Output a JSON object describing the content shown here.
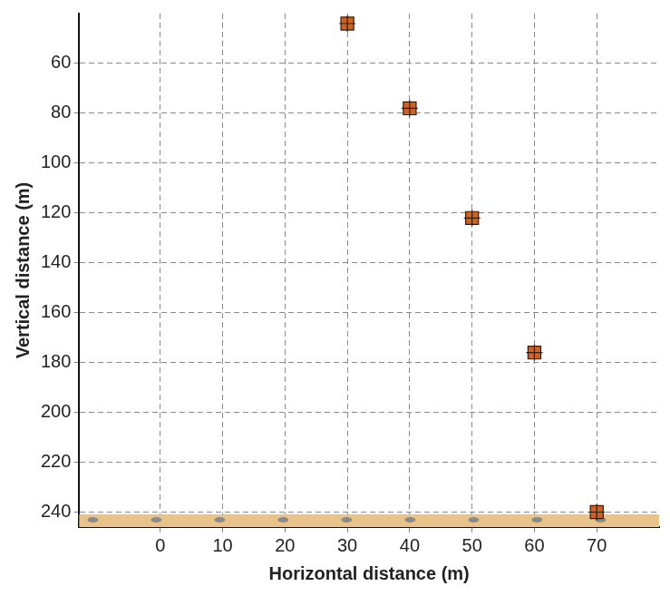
{
  "chart_data": {
    "type": "scatter",
    "x_label": "Horizontal distance (m)",
    "y_label": "Vertical distance (m)",
    "x": [
      30,
      40,
      50,
      60,
      70
    ],
    "values": [
      44,
      78,
      122,
      176,
      240
    ],
    "color": "#c8642a",
    "marker": "square",
    "xlim": [
      -13,
      80
    ],
    "xticks": [
      0,
      10,
      20,
      30,
      40,
      50,
      60,
      70
    ],
    "ylim": [
      40,
      246
    ],
    "yticks": [
      60,
      80,
      100,
      120,
      140,
      160,
      180,
      200,
      220,
      240
    ],
    "grid": true
  }
}
